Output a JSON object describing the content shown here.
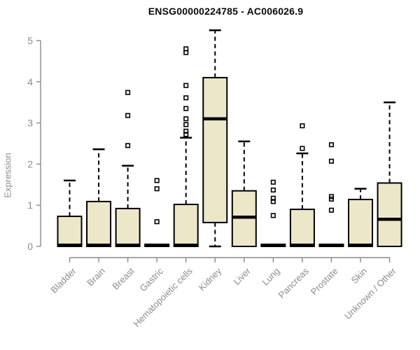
{
  "chart_data": {
    "type": "boxplot",
    "title": "ENSG00000224785 - AC006026.9",
    "ylabel": "Expression",
    "xlabel": "",
    "ylim": [
      0,
      5.3
    ],
    "yticks": [
      0,
      1,
      2,
      3,
      4,
      5
    ],
    "grid": false,
    "legend": "none",
    "categories": [
      "Bladder",
      "Brain",
      "Breast",
      "Gastric",
      "Hematopoietic cells",
      "Kidney",
      "Liver",
      "Lung",
      "Pancreas",
      "Prostate",
      "Skin",
      "Unknown / Other"
    ],
    "series": [
      {
        "category": "Bladder",
        "whisker_low": 0,
        "q1": 0,
        "median": 0.03,
        "q3": 0.73,
        "whisker_high": 1.6,
        "outliers": []
      },
      {
        "category": "Brain",
        "whisker_low": 0,
        "q1": 0,
        "median": 0.03,
        "q3": 1.09,
        "whisker_high": 2.36,
        "outliers": []
      },
      {
        "category": "Breast",
        "whisker_low": 0,
        "q1": 0,
        "median": 0.03,
        "q3": 0.92,
        "whisker_high": 1.96,
        "outliers": [
          2.45,
          3.18,
          3.74
        ]
      },
      {
        "category": "Gastric",
        "whisker_low": 0,
        "q1": 0,
        "median": 0.03,
        "q3": 0.05,
        "whisker_high": 0.05,
        "outliers": [
          0.6,
          1.4,
          1.6
        ]
      },
      {
        "category": "Hematopoietic cells",
        "whisker_low": 0,
        "q1": 0,
        "median": 0.03,
        "q3": 1.02,
        "whisker_high": 2.64,
        "outliers": [
          2.72,
          2.8,
          2.96,
          3.1,
          3.35,
          3.61,
          3.91,
          4.71,
          4.8
        ]
      },
      {
        "category": "Kidney",
        "whisker_low": 0,
        "q1": 0.58,
        "median": 3.1,
        "q3": 4.1,
        "whisker_high": 5.25,
        "outliers": []
      },
      {
        "category": "Liver",
        "whisker_low": 0,
        "q1": 0,
        "median": 0.71,
        "q3": 1.35,
        "whisker_high": 2.55,
        "outliers": []
      },
      {
        "category": "Lung",
        "whisker_low": 0,
        "q1": 0,
        "median": 0.03,
        "q3": 0.05,
        "whisker_high": 0.05,
        "outliers": [
          0.75,
          1.09,
          1.17,
          1.37,
          1.56
        ]
      },
      {
        "category": "Pancreas",
        "whisker_low": 0,
        "q1": 0,
        "median": 0.03,
        "q3": 0.9,
        "whisker_high": 2.26,
        "outliers": [
          2.38,
          2.93
        ]
      },
      {
        "category": "Prostate",
        "whisker_low": 0,
        "q1": 0,
        "median": 0.03,
        "q3": 0.05,
        "whisker_high": 0.05,
        "outliers": [
          0.88,
          1.15,
          1.21,
          2.07,
          2.47
        ]
      },
      {
        "category": "Skin",
        "whisker_low": 0,
        "q1": 0,
        "median": 0.03,
        "q3": 1.14,
        "whisker_high": 1.4,
        "outliers": []
      },
      {
        "category": "Unknown / Other",
        "whisker_low": 0,
        "q1": 0,
        "median": 0.66,
        "q3": 1.54,
        "whisker_high": 3.5,
        "outliers": []
      }
    ],
    "colors": {
      "box_fill": "#ede7c9",
      "box_stroke": "#000000",
      "median": "#000000",
      "whisker": "#000000",
      "outlier_stroke": "#000000",
      "axis": "#8a8a8a",
      "tick_label": "#8c8c8c",
      "title": "#0a0a0a"
    }
  }
}
